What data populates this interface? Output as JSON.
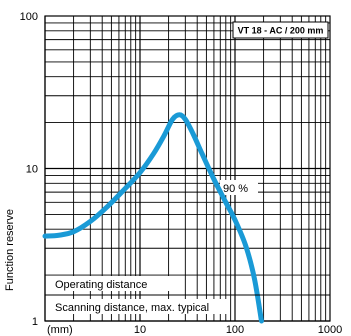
{
  "chart_data": {
    "type": "line",
    "title": "",
    "xscale": "log",
    "yscale": "log",
    "xlim": [
      1,
      1000
    ],
    "ylim": [
      1,
      100
    ],
    "x_ticks": [
      {
        "value": 1,
        "label": "(mm)"
      },
      {
        "value": 10,
        "label": "10"
      },
      {
        "value": 100,
        "label": "100"
      },
      {
        "value": 1000,
        "label": "1000"
      }
    ],
    "y_ticks": [
      {
        "value": 1,
        "label": "1"
      },
      {
        "value": 10,
        "label": "10"
      },
      {
        "value": 100,
        "label": "100"
      }
    ],
    "ylabel": "Function reserve",
    "xlabel": "",
    "grid": true,
    "series": [
      {
        "color": "#1a9ad6",
        "x": [
          1,
          1.4,
          2,
          3,
          4.5,
          7,
          10,
          14,
          18,
          22,
          26,
          30,
          36,
          45,
          60,
          80,
          100,
          130,
          160,
          190
        ],
        "y": [
          3.6,
          3.65,
          3.85,
          4.5,
          5.6,
          7.4,
          9.4,
          12.6,
          16.5,
          21,
          22.5,
          21,
          17,
          12.5,
          8.5,
          6,
          4.6,
          3.1,
          1.9,
          1.0
        ]
      }
    ],
    "annotations": {
      "model": "VT 18 - AC / 200 mm",
      "percent": "90 %",
      "operating": "Operating distance",
      "scanning": "Scanning distance, max. typical"
    },
    "colors": {
      "curve": "#1a9ad6",
      "grid": "#000000"
    }
  }
}
